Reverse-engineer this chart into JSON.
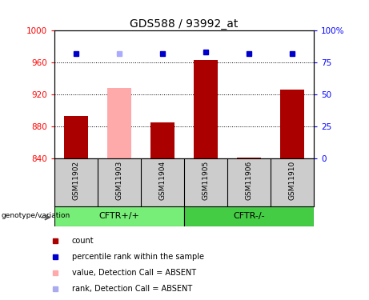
{
  "title": "GDS588 / 93992_at",
  "samples": [
    "GSM11902",
    "GSM11903",
    "GSM11904",
    "GSM11905",
    "GSM11906",
    "GSM11910"
  ],
  "bar_values": [
    893,
    928,
    885,
    963,
    841,
    926
  ],
  "bar_colors": [
    "#aa0000",
    "#ffaaaa",
    "#aa0000",
    "#aa0000",
    "#aa0000",
    "#aa0000"
  ],
  "dot_values": [
    82,
    82,
    82,
    83,
    82,
    82
  ],
  "dot_colors": [
    "#0000cc",
    "#aaaaff",
    "#0000cc",
    "#0000cc",
    "#0000cc",
    "#0000cc"
  ],
  "ylim_left": [
    840,
    1000
  ],
  "ylim_right": [
    0,
    100
  ],
  "yticks_left": [
    840,
    880,
    920,
    960,
    1000
  ],
  "yticks_right": [
    0,
    25,
    50,
    75,
    100
  ],
  "ytick_right_labels": [
    "0",
    "25",
    "50",
    "75",
    "100%"
  ],
  "groups": [
    {
      "label": "CFTR+/+",
      "samples_idx": [
        0,
        1,
        2
      ],
      "color": "#77ee77"
    },
    {
      "label": "CFTR-/-",
      "samples_idx": [
        3,
        4,
        5
      ],
      "color": "#44cc44"
    }
  ],
  "group_label": "genotype/variation",
  "legend_items": [
    {
      "label": "count",
      "color": "#aa0000"
    },
    {
      "label": "percentile rank within the sample",
      "color": "#0000cc"
    },
    {
      "label": "value, Detection Call = ABSENT",
      "color": "#ffaaaa"
    },
    {
      "label": "rank, Detection Call = ABSENT",
      "color": "#aaaaee"
    }
  ],
  "bar_width": 0.55,
  "plot_bg": "#ffffff",
  "sample_area_bg": "#cccccc",
  "fig_bg": "#ffffff"
}
